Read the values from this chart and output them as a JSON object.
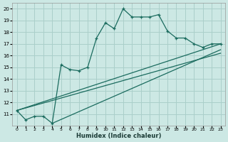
{
  "xlabel": "Humidex (Indice chaleur)",
  "bg_color": "#cce8e4",
  "grid_color": "#aacfca",
  "line_color": "#1a6b5e",
  "xlim": [
    -0.5,
    23.5
  ],
  "ylim": [
    10.0,
    20.5
  ],
  "xticks": [
    0,
    1,
    2,
    3,
    4,
    5,
    6,
    7,
    8,
    9,
    10,
    11,
    12,
    13,
    14,
    15,
    16,
    17,
    18,
    19,
    20,
    21,
    22,
    23
  ],
  "yticks": [
    11,
    12,
    13,
    14,
    15,
    16,
    17,
    18,
    19,
    20
  ],
  "line1_x": [
    0,
    1,
    2,
    3,
    4,
    5,
    6,
    7,
    8,
    9,
    10,
    11,
    12,
    13,
    14,
    15,
    16,
    17,
    18,
    19,
    20,
    21,
    22,
    23
  ],
  "line1_y": [
    11.3,
    10.5,
    10.8,
    10.8,
    10.2,
    15.2,
    14.8,
    14.7,
    15.0,
    17.5,
    18.8,
    18.3,
    20.0,
    19.3,
    19.3,
    19.3,
    19.5,
    18.1,
    17.5,
    17.5,
    17.0,
    16.7,
    17.0,
    17.0
  ],
  "line2_x": [
    0,
    23
  ],
  "line2_y": [
    11.3,
    17.0
  ],
  "line3_x": [
    0,
    23
  ],
  "line3_y": [
    11.3,
    16.2
  ],
  "line4_x": [
    4,
    23
  ],
  "line4_y": [
    10.2,
    16.5
  ]
}
